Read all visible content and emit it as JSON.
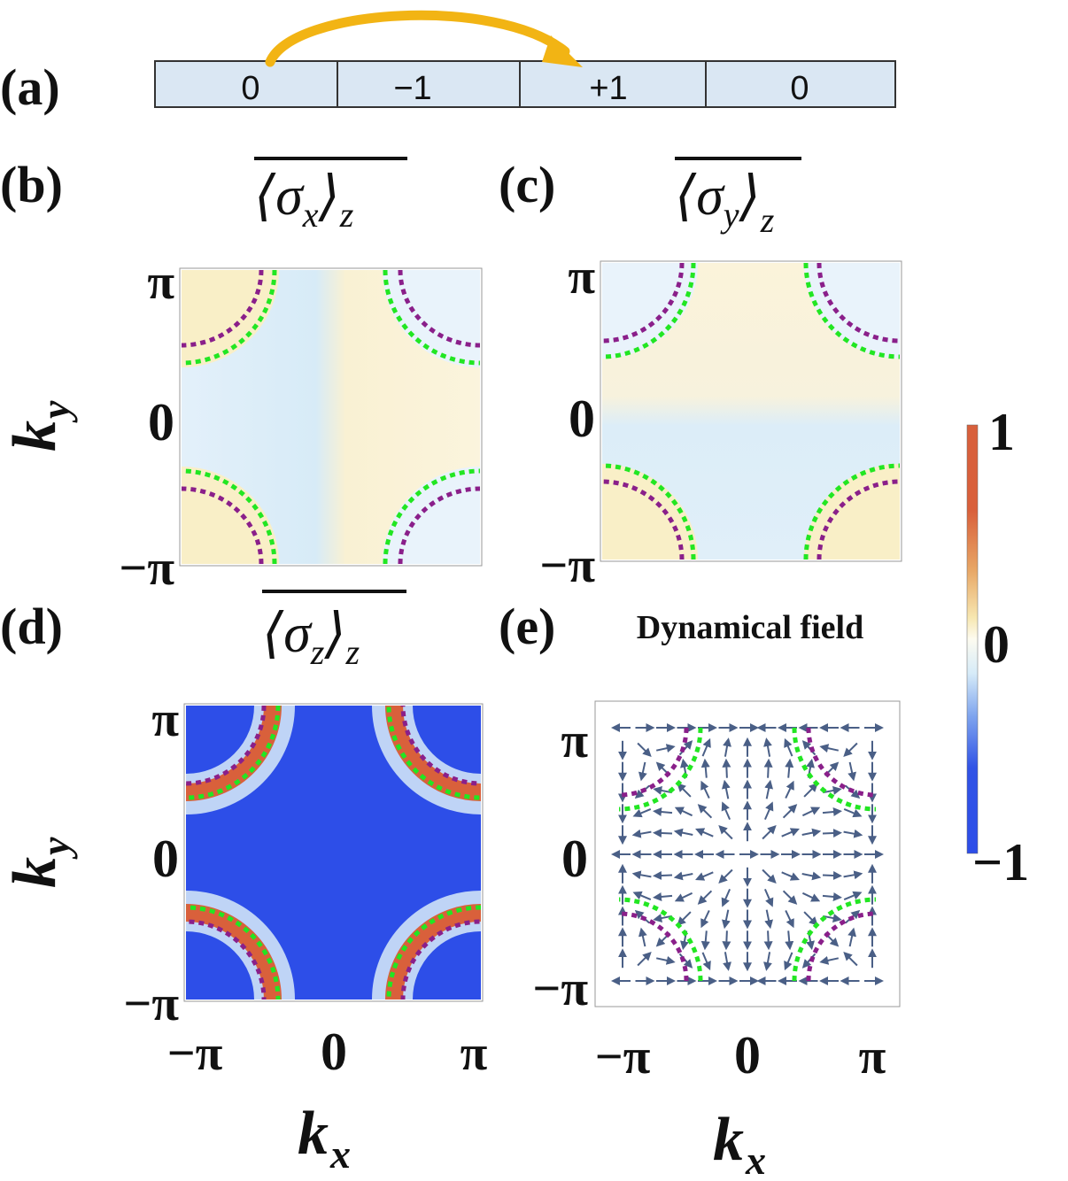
{
  "panels": {
    "a": {
      "label": "(a)",
      "cells": [
        "0",
        "−1",
        "+1",
        "0"
      ]
    },
    "b": {
      "label": "(b)",
      "title_op": "⟨σ",
      "title_sub": "x",
      "title_close": "⟩",
      "title_outer": "z"
    },
    "c": {
      "label": "(c)",
      "title_op": "⟨σ",
      "title_sub": "y",
      "title_close": "⟩",
      "title_outer": "z"
    },
    "d": {
      "label": "(d)",
      "title_op": "⟨σ",
      "title_sub": "z",
      "title_close": "⟩",
      "title_outer": "z"
    },
    "e": {
      "label": "(e)",
      "title": "Dynamical field"
    }
  },
  "axes": {
    "ky_main": "k",
    "ky_sub": "y",
    "kx_main": "k",
    "kx_sub": "x",
    "ticks": [
      "−π",
      "0",
      "π"
    ]
  },
  "colorbar": {
    "max": "1",
    "mid": "0",
    "min": "−1",
    "range": [
      -1,
      1
    ]
  },
  "colors": {
    "positive": "#d9603b",
    "negative": "#2d4ee8",
    "zero": "#fdf7e2",
    "green_contour": "#22e622",
    "purple_contour": "#8a1f8a",
    "arrow": "#4a5f86",
    "arrow_curve": "#f2b414",
    "cell_fill": "#dae7f3"
  }
}
